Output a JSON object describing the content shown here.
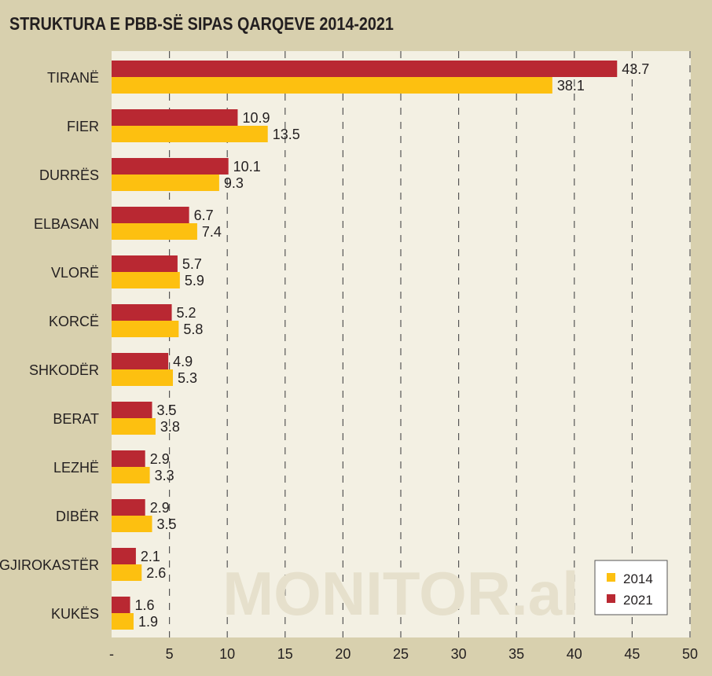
{
  "chart_data": {
    "type": "bar",
    "orientation": "horizontal",
    "title": "STRUKTURA E PBB-SË SIPAS QARQEVE 2014-2021",
    "categories": [
      "TIRANË",
      "FIER",
      "DURRËS",
      "ELBASAN",
      "VLORË",
      "KORCË",
      "SHKODËR",
      "BERAT",
      "LEZHË",
      "DIBËR",
      "GJIROKASTËR",
      "KUKËS"
    ],
    "series": [
      {
        "name": "2021",
        "color": "#b92832",
        "values": [
          43.7,
          10.9,
          10.1,
          6.7,
          5.7,
          5.2,
          4.9,
          3.5,
          2.9,
          2.9,
          2.1,
          1.6
        ]
      },
      {
        "name": "2014",
        "color": "#fdc010",
        "values": [
          38.1,
          13.5,
          9.3,
          7.4,
          5.9,
          5.8,
          5.3,
          3.8,
          3.3,
          3.5,
          2.6,
          1.9
        ]
      }
    ],
    "xlim": [
      0,
      50
    ],
    "xticks": [
      0,
      5,
      10,
      15,
      20,
      25,
      30,
      35,
      40,
      45,
      50
    ],
    "xtick_labels": [
      "-",
      "5",
      "10",
      "15",
      "20",
      "25",
      "30",
      "35",
      "40",
      "45",
      "50"
    ],
    "grid": "vertical dashed",
    "legend": {
      "placement": "bottom-right",
      "entries": [
        "2014",
        "2021"
      ]
    },
    "watermark": "MONITOR.al"
  }
}
